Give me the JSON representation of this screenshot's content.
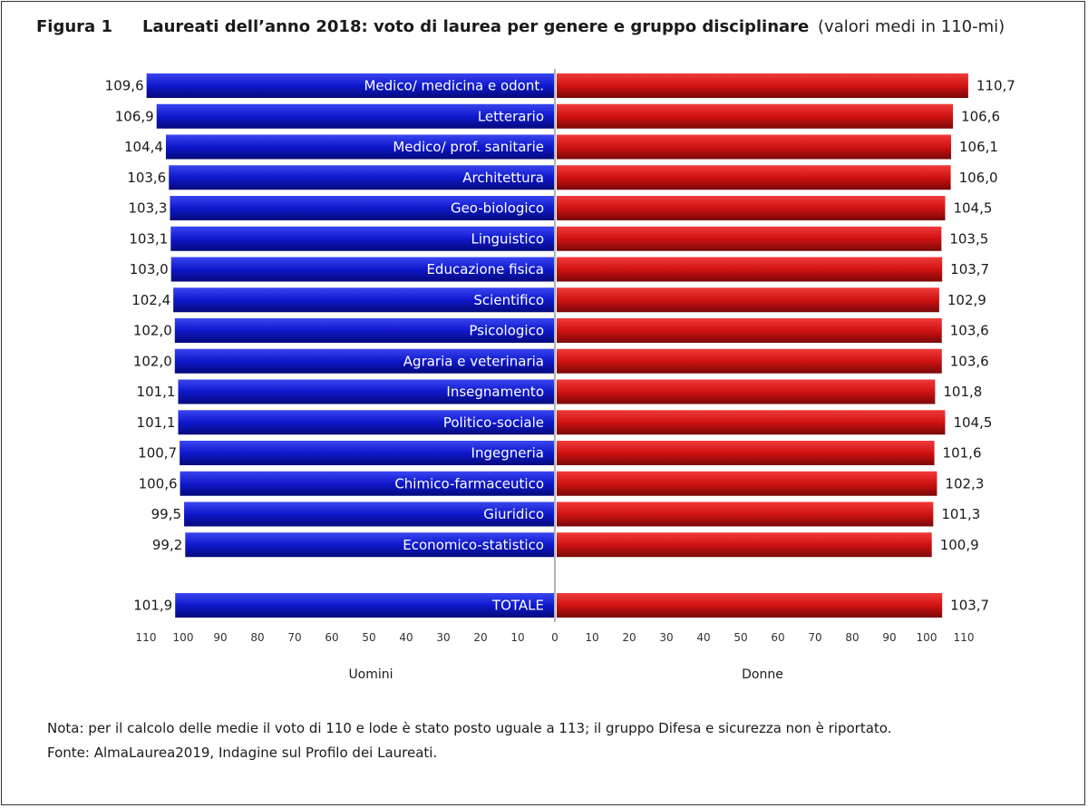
{
  "figure": {
    "label": "Figura 1",
    "title": "Laureati dell’anno 2018: voto di laurea per genere e gruppo disciplinare",
    "subtitle": "(valori medi in 110-mi)"
  },
  "chart_data": {
    "type": "bar",
    "orientation": "horizontal",
    "layout": "back-to-back",
    "categories": [
      "Medico/ medicina e odont.",
      "Letterario",
      "Medico/ prof. sanitarie",
      "Architettura",
      "Geo-biologico",
      "Linguistico",
      "Educazione fisica",
      "Scientifico",
      "Psicologico",
      "Agraria e veterinaria",
      "Insegnamento",
      "Politico-sociale",
      "Ingegneria",
      "Chimico-farmaceutico",
      "Giuridico",
      "Economico-statistico",
      "TOTALE"
    ],
    "series": [
      {
        "name": "Uomini",
        "color": "#0a14c8",
        "values": [
          109.6,
          106.9,
          104.4,
          103.6,
          103.3,
          103.1,
          103.0,
          102.4,
          102.0,
          102.0,
          101.1,
          101.1,
          100.7,
          100.6,
          99.5,
          99.2,
          101.9
        ],
        "labels": [
          "109,6",
          "106,9",
          "104,4",
          "103,6",
          "103,3",
          "103,1",
          "103,0",
          "102,4",
          "102,0",
          "102,0",
          "101,1",
          "101,1",
          "100,7",
          "100,6",
          "99,5",
          "99,2",
          "101,9"
        ]
      },
      {
        "name": "Donne",
        "color": "#cc1010",
        "values": [
          110.7,
          106.6,
          106.1,
          106.0,
          104.5,
          103.5,
          103.7,
          102.9,
          103.6,
          103.6,
          101.8,
          104.5,
          101.6,
          102.3,
          101.3,
          100.9,
          103.7
        ],
        "labels": [
          "110,7",
          "106,6",
          "106,1",
          "106,0",
          "104,5",
          "103,5",
          "103,7",
          "102,9",
          "103,6",
          "103,6",
          "101,8",
          "104,5",
          "101,6",
          "102,3",
          "101,3",
          "100,9",
          "103,7"
        ]
      }
    ],
    "xlim": [
      0,
      110
    ],
    "ticks": [
      110,
      100,
      90,
      80,
      70,
      60,
      50,
      40,
      30,
      20,
      10,
      0,
      10,
      20,
      30,
      40,
      50,
      60,
      70,
      80,
      90,
      100,
      110
    ],
    "grid": false
  },
  "notes": {
    "line1": "Nota: per il calcolo delle medie il voto di 110 e lode è stato posto uguale a 113; il gruppo Difesa e sicurezza non è riportato.",
    "line2": "Fonte: AlmaLaurea2019, Indagine sul Profilo dei Laureati."
  }
}
